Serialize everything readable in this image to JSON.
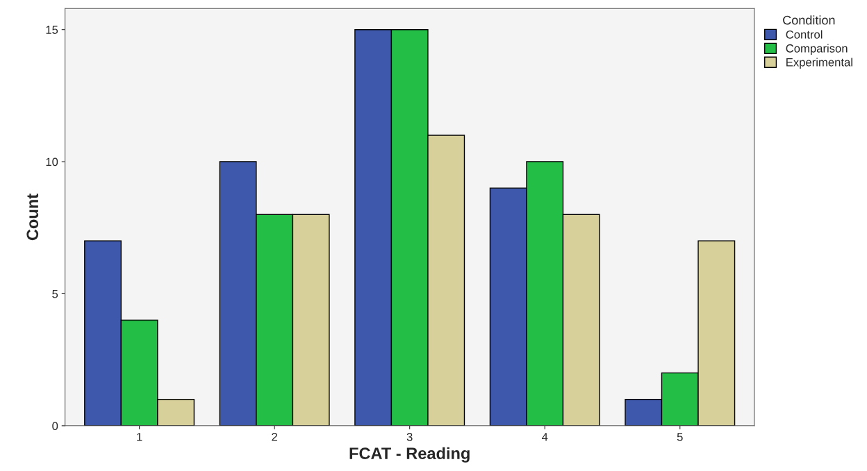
{
  "chart_data": {
    "type": "bar",
    "xlabel": "FCAT - Reading",
    "ylabel": "Count",
    "legend_title": "Condition",
    "categories": [
      "1",
      "2",
      "3",
      "4",
      "5"
    ],
    "series": [
      {
        "name": "Control",
        "color": "#3e58ac",
        "values": [
          7,
          10,
          15,
          9,
          1
        ]
      },
      {
        "name": "Comparison",
        "color": "#22be46",
        "values": [
          4,
          8,
          15,
          10,
          2
        ]
      },
      {
        "name": "Experimental",
        "color": "#d8d09b",
        "values": [
          1,
          8,
          11,
          8,
          7
        ]
      }
    ],
    "ylim": [
      0,
      15.8
    ],
    "yticks": [
      0,
      5,
      10,
      15
    ],
    "grid": false,
    "legend": "top right"
  }
}
